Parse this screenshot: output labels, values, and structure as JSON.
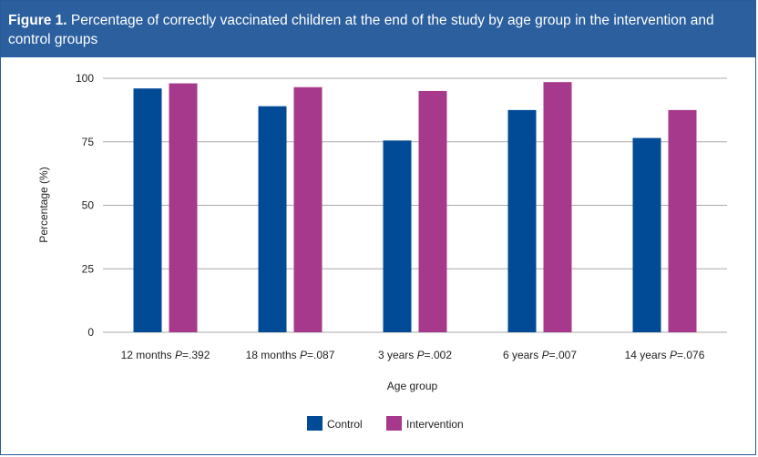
{
  "figure_label": "Figure 1.",
  "figure_title": "Percentage of correctly vaccinated children at the end of the study by age group in the intervention and control groups",
  "colors": {
    "header": "#2b5f9e",
    "Control": "#004a96",
    "Intervention": "#a6398b",
    "grid": "#aaaaaa"
  },
  "chart_data": {
    "type": "bar",
    "title": "",
    "xlabel": "Age group",
    "ylabel": "Percentage (%)",
    "ylim": [
      0,
      100
    ],
    "yticks": [
      0,
      25,
      50,
      75,
      100
    ],
    "grid": true,
    "legend_position": "bottom",
    "categories": [
      {
        "label": "12 months",
        "p_symbol": "P",
        "p_value": "=.392"
      },
      {
        "label": "18 months",
        "p_symbol": "P",
        "p_value": "=.087"
      },
      {
        "label": "3 years",
        "p_symbol": "P",
        "p_value": "=.002"
      },
      {
        "label": "6 years",
        "p_symbol": "P",
        "p_value": "=.007"
      },
      {
        "label": "14 years",
        "p_symbol": "P",
        "p_value": "=.076"
      }
    ],
    "series": [
      {
        "name": "Control",
        "values": [
          96,
          89,
          75.5,
          87.5,
          76.5
        ]
      },
      {
        "name": "Intervention",
        "values": [
          98,
          96.5,
          95,
          98.5,
          87.5
        ]
      }
    ]
  }
}
